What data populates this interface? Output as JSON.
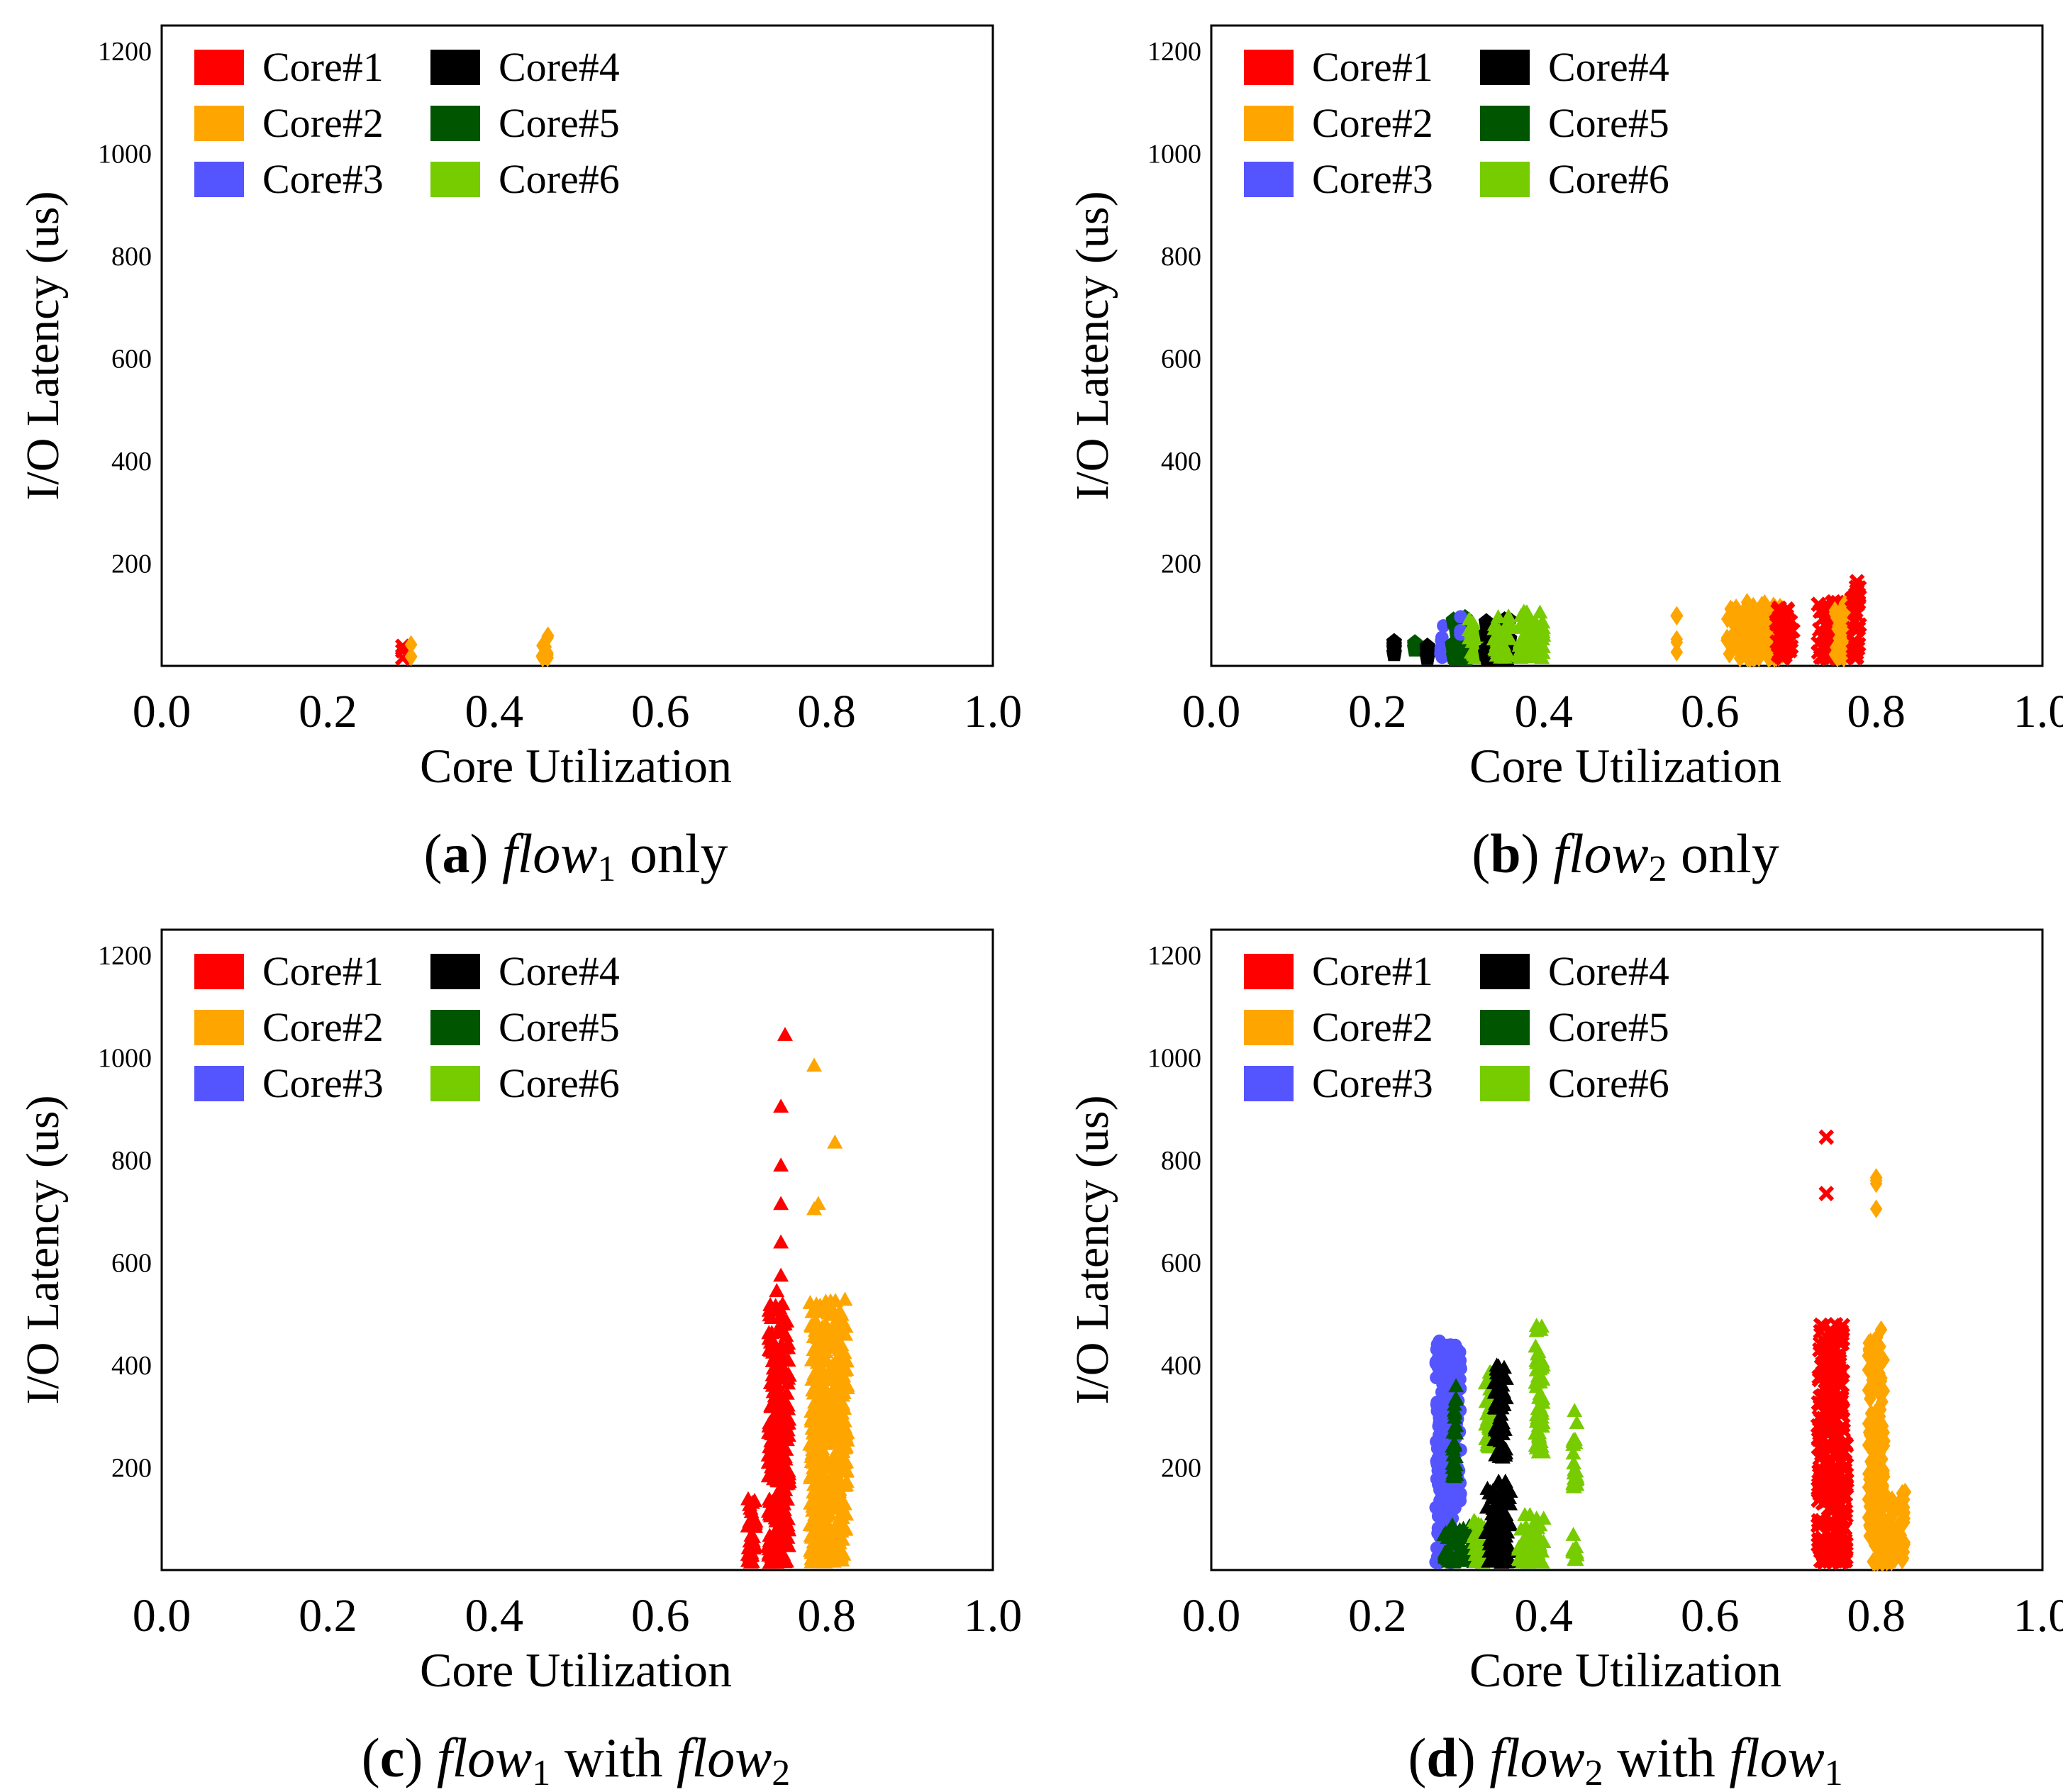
{
  "chart_data": [
    {
      "type": "scatter",
      "id": "a",
      "caption": {
        "label": "a",
        "var": "flow",
        "sub": "1",
        "rest": " only"
      },
      "xlabel": "Core Utilization",
      "ylabel": "I/O Latency (us)",
      "xlim": [
        0.0,
        1.0
      ],
      "ylim": [
        0,
        1250
      ],
      "xticks": [
        "0.0",
        "0.2",
        "0.4",
        "0.6",
        "0.8",
        "1.0"
      ],
      "yticks": [
        "200",
        "400",
        "600",
        "800",
        "1000",
        "1200"
      ],
      "legend": [
        "Core#1",
        "Core#4",
        "Core#2",
        "Core#5",
        "Core#3",
        "Core#6"
      ],
      "clusters": [
        {
          "core": "Core#1",
          "marker": "x",
          "x": [
            0.29,
            0.29
          ],
          "y": [
            15,
            45
          ]
        },
        {
          "core": "Core#2",
          "marker": "diamond",
          "x": [
            0.3,
            0.3
          ],
          "y": [
            15,
            52
          ]
        },
        {
          "core": "Core#2",
          "marker": "diamond",
          "x": [
            0.455,
            0.465
          ],
          "y": [
            15,
            62
          ]
        }
      ]
    },
    {
      "type": "scatter",
      "id": "b",
      "caption": {
        "label": "b",
        "var": "flow",
        "sub": "2",
        "rest": " only"
      },
      "xlabel": "Core Utilization",
      "ylabel": "I/O Latency (us)",
      "xlim": [
        0.0,
        1.0
      ],
      "ylim": [
        0,
        1250
      ],
      "xticks": [
        "0.0",
        "0.2",
        "0.4",
        "0.6",
        "0.8",
        "1.0"
      ],
      "yticks": [
        "200",
        "400",
        "600",
        "800",
        "1000",
        "1200"
      ],
      "legend": [
        "Core#1",
        "Core#4",
        "Core#2",
        "Core#5",
        "Core#3",
        "Core#6"
      ],
      "clusters": [
        {
          "core": "Core#4",
          "marker": "pentagon",
          "x": [
            0.22,
            0.22
          ],
          "y": [
            15,
            65
          ]
        },
        {
          "core": "Core#5",
          "marker": "pentagon",
          "x": [
            0.245,
            0.245
          ],
          "y": [
            15,
            60
          ]
        },
        {
          "core": "Core#4",
          "marker": "pentagon",
          "x": [
            0.26,
            0.26
          ],
          "y": [
            15,
            80
          ]
        },
        {
          "core": "Core#3",
          "marker": "circle",
          "x": [
            0.275,
            0.28
          ],
          "y": [
            15,
            80
          ]
        },
        {
          "core": "Core#5",
          "marker": "pentagon",
          "x": [
            0.29,
            0.31
          ],
          "y": [
            15,
            95
          ]
        },
        {
          "core": "Core#3",
          "marker": "circle",
          "x": [
            0.3,
            0.3
          ],
          "y": [
            60,
            100
          ]
        },
        {
          "core": "Core#6",
          "marker": "triangle",
          "x": [
            0.31,
            0.32
          ],
          "y": [
            15,
            95
          ]
        },
        {
          "core": "Core#4",
          "marker": "pentagon",
          "x": [
            0.33,
            0.36
          ],
          "y": [
            15,
            90
          ]
        },
        {
          "core": "Core#6",
          "marker": "triangle",
          "x": [
            0.34,
            0.36
          ],
          "y": [
            15,
            100
          ]
        },
        {
          "core": "Core#6",
          "marker": "triangle",
          "x": [
            0.37,
            0.4
          ],
          "y": [
            15,
            110
          ]
        },
        {
          "core": "Core#2",
          "marker": "diamond",
          "x": [
            0.56,
            0.56
          ],
          "y": [
            15,
            110
          ]
        },
        {
          "core": "Core#2",
          "marker": "diamond",
          "x": [
            0.62,
            0.69
          ],
          "y": [
            15,
            125
          ]
        },
        {
          "core": "Core#1",
          "marker": "x",
          "x": [
            0.68,
            0.7
          ],
          "y": [
            15,
            115
          ]
        },
        {
          "core": "Core#1",
          "marker": "x",
          "x": [
            0.73,
            0.755
          ],
          "y": [
            15,
            125
          ]
        },
        {
          "core": "Core#2",
          "marker": "diamond",
          "x": [
            0.75,
            0.765
          ],
          "y": [
            15,
            125
          ]
        },
        {
          "core": "Core#1",
          "marker": "x",
          "x": [
            0.77,
            0.78
          ],
          "y": [
            15,
            165
          ]
        }
      ]
    },
    {
      "type": "scatter",
      "id": "c",
      "caption": {
        "label": "c",
        "var": "flow",
        "sub": "1",
        "rest": " with ",
        "var2": "flow",
        "sub2": "2"
      },
      "xlabel": "Core Utilization",
      "ylabel": "I/O Latency (us)",
      "xlim": [
        0.0,
        1.0
      ],
      "ylim": [
        0,
        1250
      ],
      "xticks": [
        "0.0",
        "0.2",
        "0.4",
        "0.6",
        "0.8",
        "1.0"
      ],
      "yticks": [
        "200",
        "400",
        "600",
        "800",
        "1000",
        "1200"
      ],
      "legend": [
        "Core#1",
        "Core#4",
        "Core#2",
        "Core#5",
        "Core#3",
        "Core#6"
      ],
      "clusters": [
        {
          "core": "Core#1",
          "marker": "triangle",
          "x": [
            0.705,
            0.715
          ],
          "y": [
            15,
            140
          ]
        },
        {
          "core": "Core#1",
          "marker": "triangle",
          "x": [
            0.73,
            0.755
          ],
          "y": [
            15,
            520
          ]
        },
        {
          "core": "Core#1",
          "marker": "triangle",
          "x": [
            0.74,
            0.74
          ],
          "y": [
            545,
            545
          ]
        },
        {
          "core": "Core#1",
          "marker": "triangle",
          "x": [
            0.745,
            0.745
          ],
          "y": [
            575,
            575
          ]
        },
        {
          "core": "Core#1",
          "marker": "triangle",
          "x": [
            0.745,
            0.745
          ],
          "y": [
            640,
            640
          ]
        },
        {
          "core": "Core#1",
          "marker": "triangle",
          "x": [
            0.745,
            0.745
          ],
          "y": [
            715,
            715
          ]
        },
        {
          "core": "Core#1",
          "marker": "triangle",
          "x": [
            0.745,
            0.745
          ],
          "y": [
            790,
            790
          ]
        },
        {
          "core": "Core#1",
          "marker": "triangle",
          "x": [
            0.745,
            0.745
          ],
          "y": [
            905,
            905
          ]
        },
        {
          "core": "Core#1",
          "marker": "triangle",
          "x": [
            0.75,
            0.75
          ],
          "y": [
            1045,
            1045
          ]
        },
        {
          "core": "Core#2",
          "marker": "triangle",
          "x": [
            0.78,
            0.825
          ],
          "y": [
            15,
            200
          ]
        },
        {
          "core": "Core#2",
          "marker": "triangle",
          "x": [
            0.78,
            0.825
          ],
          "y": [
            200,
            530
          ]
        },
        {
          "core": "Core#2",
          "marker": "triangle",
          "x": [
            0.785,
            0.785
          ],
          "y": [
            705,
            705
          ]
        },
        {
          "core": "Core#2",
          "marker": "triangle",
          "x": [
            0.79,
            0.79
          ],
          "y": [
            715,
            715
          ]
        },
        {
          "core": "Core#2",
          "marker": "triangle",
          "x": [
            0.81,
            0.81
          ],
          "y": [
            835,
            835
          ]
        },
        {
          "core": "Core#2",
          "marker": "triangle",
          "x": [
            0.785,
            0.785
          ],
          "y": [
            985,
            985
          ]
        }
      ]
    },
    {
      "type": "scatter",
      "id": "d",
      "caption": {
        "label": "d",
        "var": "flow",
        "sub": "2",
        "rest": " with ",
        "var2": "flow",
        "sub2": "1"
      },
      "xlabel": "Core Utilization",
      "ylabel": "I/O Latency (us)",
      "xlim": [
        0.0,
        1.0
      ],
      "ylim": [
        0,
        1250
      ],
      "xticks": [
        "0.0",
        "0.2",
        "0.4",
        "0.6",
        "0.8",
        "1.0"
      ],
      "yticks": [
        "200",
        "400",
        "600",
        "800",
        "1000",
        "1200"
      ],
      "legend": [
        "Core#1",
        "Core#4",
        "Core#2",
        "Core#5",
        "Core#3",
        "Core#6"
      ],
      "clusters": [
        {
          "core": "Core#3",
          "marker": "circle",
          "x": [
            0.27,
            0.29
          ],
          "y": [
            15,
            120
          ]
        },
        {
          "core": "Core#3",
          "marker": "circle",
          "x": [
            0.27,
            0.3
          ],
          "y": [
            120,
            450
          ]
        },
        {
          "core": "Core#5",
          "marker": "triangle",
          "x": [
            0.28,
            0.32
          ],
          "y": [
            15,
            90
          ]
        },
        {
          "core": "Core#5",
          "marker": "triangle",
          "x": [
            0.29,
            0.295
          ],
          "y": [
            180,
            360
          ]
        },
        {
          "core": "Core#6",
          "marker": "triangle",
          "x": [
            0.315,
            0.33
          ],
          "y": [
            15,
            100
          ]
        },
        {
          "core": "Core#6",
          "marker": "triangle",
          "x": [
            0.33,
            0.34
          ],
          "y": [
            240,
            390
          ]
        },
        {
          "core": "Core#4",
          "marker": "triangle",
          "x": [
            0.33,
            0.36
          ],
          "y": [
            15,
            175
          ]
        },
        {
          "core": "Core#4",
          "marker": "triangle",
          "x": [
            0.34,
            0.355
          ],
          "y": [
            220,
            400
          ]
        },
        {
          "core": "Core#6",
          "marker": "triangle",
          "x": [
            0.37,
            0.4
          ],
          "y": [
            15,
            110
          ]
        },
        {
          "core": "Core#6",
          "marker": "triangle",
          "x": [
            0.39,
            0.4
          ],
          "y": [
            230,
            480
          ]
        },
        {
          "core": "Core#6",
          "marker": "triangle",
          "x": [
            0.435,
            0.44
          ],
          "y": [
            15,
            75
          ]
        },
        {
          "core": "Core#6",
          "marker": "triangle",
          "x": [
            0.435,
            0.44
          ],
          "y": [
            160,
            330
          ]
        },
        {
          "core": "Core#1",
          "marker": "x",
          "x": [
            0.73,
            0.765
          ],
          "y": [
            15,
            320
          ]
        },
        {
          "core": "Core#1",
          "marker": "x",
          "x": [
            0.73,
            0.76
          ],
          "y": [
            320,
            480
          ]
        },
        {
          "core": "Core#1",
          "marker": "x",
          "x": [
            0.74,
            0.74
          ],
          "y": [
            735,
            735
          ]
        },
        {
          "core": "Core#1",
          "marker": "x",
          "x": [
            0.74,
            0.74
          ],
          "y": [
            845,
            845
          ]
        },
        {
          "core": "Core#2",
          "marker": "diamond",
          "x": [
            0.79,
            0.835
          ],
          "y": [
            15,
            160
          ]
        },
        {
          "core": "Core#2",
          "marker": "diamond",
          "x": [
            0.79,
            0.81
          ],
          "y": [
            160,
            470
          ]
        },
        {
          "core": "Core#2",
          "marker": "diamond",
          "x": [
            0.8,
            0.8
          ],
          "y": [
            705,
            705
          ]
        },
        {
          "core": "Core#2",
          "marker": "diamond",
          "x": [
            0.8,
            0.8
          ],
          "y": [
            750,
            770
          ]
        }
      ]
    }
  ],
  "colors": {
    "Core#1": "#ff0000",
    "Core#2": "#ffa500",
    "Core#3": "#5555ff",
    "Core#4": "#000000",
    "Core#5": "#005500",
    "Core#6": "#77cc00"
  }
}
